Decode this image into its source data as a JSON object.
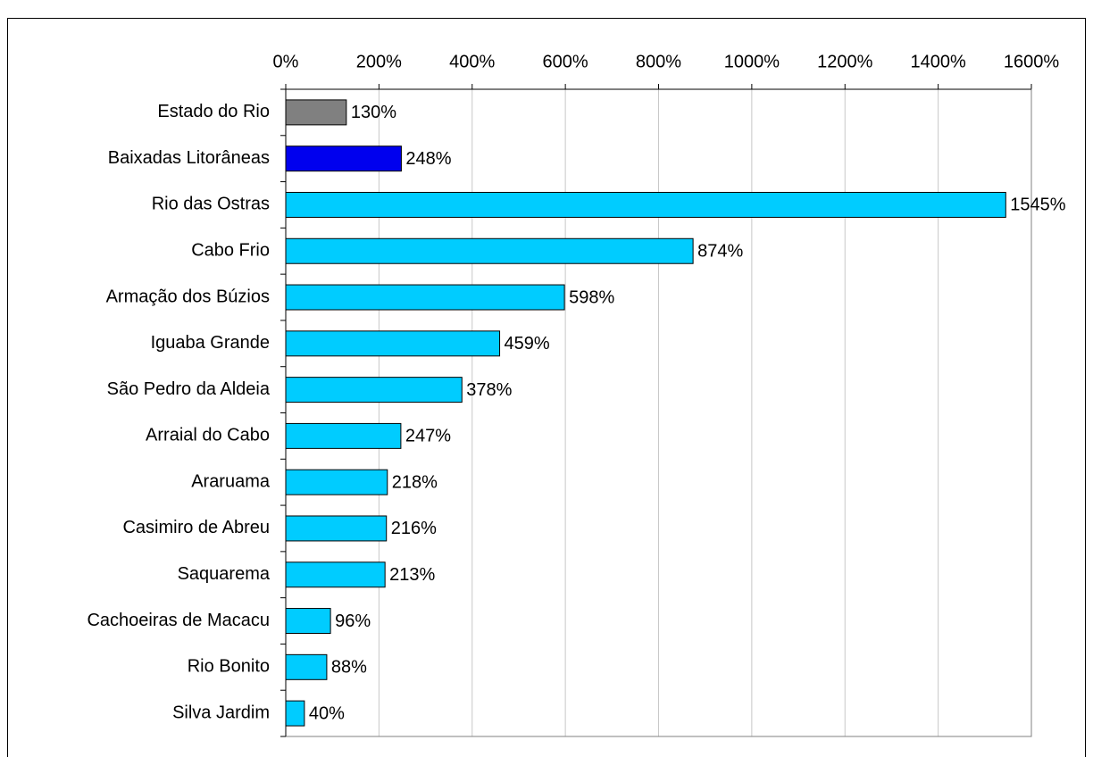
{
  "chart_data": {
    "type": "hbar",
    "categories": [
      "Estado do Rio",
      "Baixadas Litorâneas",
      "Rio das Ostras",
      "Cabo Frio",
      "Armação dos Búzios",
      "Iguaba Grande",
      "São Pedro da Aldeia",
      "Arraial do Cabo",
      "Araruama",
      "Casimiro de Abreu",
      "Saquarema",
      "Cachoeiras de Macacu",
      "Rio Bonito",
      "Silva Jardim"
    ],
    "values": [
      130,
      248,
      1545,
      874,
      598,
      459,
      378,
      247,
      218,
      216,
      213,
      96,
      88,
      40
    ],
    "value_labels": [
      "130%",
      "248%",
      "1545%",
      "874%",
      "598%",
      "459%",
      "378%",
      "247%",
      "218%",
      "216%",
      "213%",
      "96%",
      "88%",
      "40%"
    ],
    "colors": [
      "#808080",
      "#0000ee",
      "#00ccff",
      "#00ccff",
      "#00ccff",
      "#00ccff",
      "#00ccff",
      "#00ccff",
      "#00ccff",
      "#00ccff",
      "#00ccff",
      "#00ccff",
      "#00ccff",
      "#00ccff"
    ],
    "xlim": [
      0,
      1600
    ],
    "xticks": [
      {
        "value": 0,
        "label": "0%"
      },
      {
        "value": 200,
        "label": "200%"
      },
      {
        "value": 400,
        "label": "400%"
      },
      {
        "value": 600,
        "label": "600%"
      },
      {
        "value": 800,
        "label": "800%"
      },
      {
        "value": 1000,
        "label": "1000%"
      },
      {
        "value": 1200,
        "label": "1200%"
      },
      {
        "value": 1400,
        "label": "1400%"
      },
      {
        "value": 1600,
        "label": "1600%"
      }
    ],
    "grid": true
  }
}
